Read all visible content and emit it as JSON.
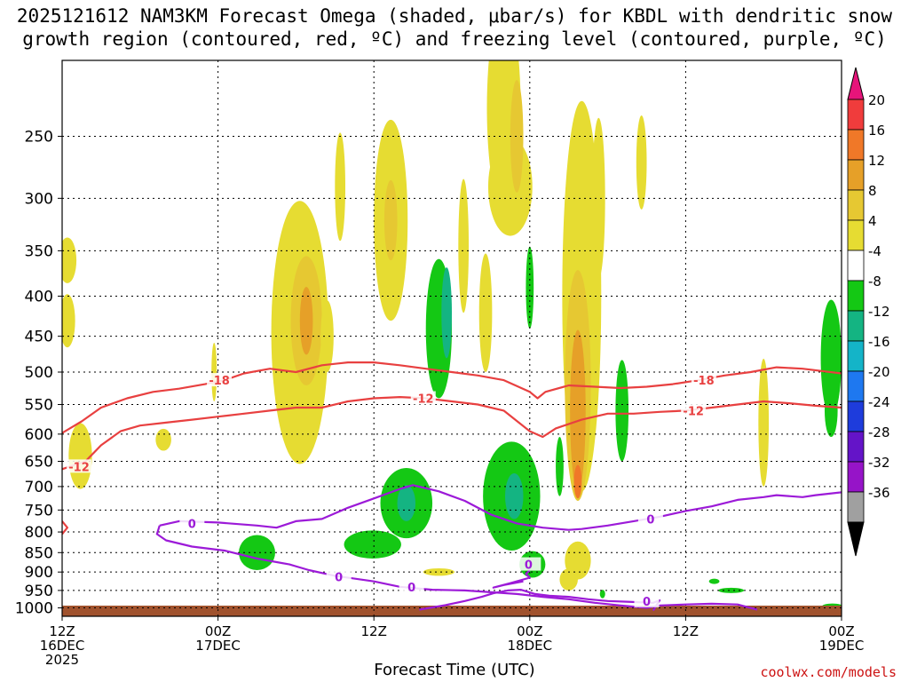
{
  "title": {
    "line1": "2025121612 NAM3KM Forecast Omega (shaded, μbar/s) for KBDL with dendritic snow",
    "line2": "growth region (contoured, red, ºC) and freezing level (contoured, purple, ºC)"
  },
  "credit": "coolwx.com/models",
  "chart_data": {
    "type": "heatmap",
    "title": "2025121612 NAM3KM Forecast Omega (shaded, μbar/s) for KBDL with dendritic snow growth region (contoured, red, ºC) and freezing level (contoured, purple, ºC)",
    "xlabel": "Forecast Time (UTC)",
    "ylabel": "",
    "x_range_hours": [
      0,
      60
    ],
    "y_scale": "log-pressure",
    "y_range_hpa": [
      1025,
      200
    ],
    "y_ticks": [
      250,
      300,
      350,
      400,
      450,
      500,
      550,
      600,
      650,
      700,
      750,
      800,
      850,
      900,
      950,
      1000
    ],
    "x_ticks": [
      {
        "hour": 0,
        "line1": "12Z",
        "line2": "16DEC",
        "line3": "2025"
      },
      {
        "hour": 12,
        "line1": "00Z",
        "line2": "17DEC",
        "line3": ""
      },
      {
        "hour": 24,
        "line1": "12Z",
        "line2": "",
        "line3": ""
      },
      {
        "hour": 36,
        "line1": "00Z",
        "line2": "18DEC",
        "line3": ""
      },
      {
        "hour": 48,
        "line1": "12Z",
        "line2": "",
        "line3": ""
      },
      {
        "hour": 60,
        "line1": "00Z",
        "line2": "19DEC",
        "line3": ""
      }
    ],
    "colorbar": {
      "levels": [
        "20",
        "16",
        "12",
        "8",
        "4",
        "-4",
        "-8",
        "-12",
        "-16",
        "-20",
        "-24",
        "-28",
        "-32",
        "-36"
      ],
      "colors": [
        "#f03c3c",
        "#f07828",
        "#e6a028",
        "#e6c832",
        "#e6dc32",
        "#ffffff",
        "#14c814",
        "#14b482",
        "#14b4c8",
        "#1e78f0",
        "#1e3cdc",
        "#6414c8",
        "#9614c8",
        "#a0a0a0"
      ],
      "over_color": "#e6147a",
      "under_color": "#000000"
    },
    "omega_blobs": [
      {
        "t": 0.4,
        "p": 360,
        "dt": 0.7,
        "dp": 25,
        "level": 4
      },
      {
        "t": 0.4,
        "p": 430,
        "dt": 0.6,
        "dp": 35,
        "level": 4
      },
      {
        "t": 1.4,
        "p": 640,
        "dt": 0.9,
        "dp": 65,
        "level": 4
      },
      {
        "t": 7.8,
        "p": 610,
        "dt": 0.6,
        "dp": 20,
        "level": 4
      },
      {
        "t": 11.7,
        "p": 500,
        "dt": 0.2,
        "dp": 45,
        "level": 4
      },
      {
        "t": 18.3,
        "p": 445,
        "dt": 2.2,
        "dp": 210,
        "level": 4
      },
      {
        "t": 18.8,
        "p": 430,
        "dt": 1.2,
        "dp": 90,
        "level": 8
      },
      {
        "t": 18.8,
        "p": 430,
        "dt": 0.5,
        "dp": 45,
        "level": 12
      },
      {
        "t": 20.4,
        "p": 450,
        "dt": 0.5,
        "dp": 50,
        "level": 4
      },
      {
        "t": 21.4,
        "p": 290,
        "dt": 0.4,
        "dp": 50,
        "level": 4
      },
      {
        "t": 25.3,
        "p": 320,
        "dt": 1.3,
        "dp": 110,
        "level": 4
      },
      {
        "t": 25.3,
        "p": 320,
        "dt": 0.5,
        "dp": 40,
        "level": 8
      },
      {
        "t": 30.9,
        "p": 345,
        "dt": 0.4,
        "dp": 75,
        "level": 4
      },
      {
        "t": 32.6,
        "p": 420,
        "dt": 0.5,
        "dp": 80,
        "level": 4
      },
      {
        "t": 34.0,
        "p": 230,
        "dt": 1.3,
        "dp": 80,
        "level": 4
      },
      {
        "t": 34.5,
        "p": 290,
        "dt": 1.7,
        "dp": 45,
        "level": 4
      },
      {
        "t": 35.0,
        "p": 250,
        "dt": 0.5,
        "dp": 45,
        "level": 8
      },
      {
        "t": 40.0,
        "p": 400,
        "dt": 1.5,
        "dp": 310,
        "level": 4
      },
      {
        "t": 39.7,
        "p": 520,
        "dt": 1.0,
        "dp": 210,
        "level": 8
      },
      {
        "t": 39.7,
        "p": 560,
        "dt": 0.6,
        "dp": 150,
        "level": 12
      },
      {
        "t": 39.7,
        "p": 690,
        "dt": 0.3,
        "dp": 35,
        "level": 16
      },
      {
        "t": 39.7,
        "p": 870,
        "dt": 1.0,
        "dp": 50,
        "level": 4
      },
      {
        "t": 41.3,
        "p": 300,
        "dt": 0.5,
        "dp": 80,
        "level": 4
      },
      {
        "t": 44.6,
        "p": 270,
        "dt": 0.4,
        "dp": 40,
        "level": 4
      },
      {
        "t": 54.0,
        "p": 580,
        "dt": 0.4,
        "dp": 120,
        "level": 4
      },
      {
        "t": 29.0,
        "p": 900,
        "dt": 1.2,
        "dp": 10,
        "level": 4
      },
      {
        "t": 39.0,
        "p": 920,
        "dt": 0.7,
        "dp": 30,
        "level": 4
      },
      {
        "t": 26.5,
        "p": 735,
        "dt": 2.0,
        "dp": 80,
        "level": -4
      },
      {
        "t": 26.5,
        "p": 735,
        "dt": 0.7,
        "dp": 40,
        "level": -8
      },
      {
        "t": 23.9,
        "p": 830,
        "dt": 2.2,
        "dp": 35,
        "level": -4
      },
      {
        "t": 29.0,
        "p": 440,
        "dt": 1.0,
        "dp": 100,
        "level": -4
      },
      {
        "t": 29.6,
        "p": 420,
        "dt": 0.4,
        "dp": 60,
        "level": -8
      },
      {
        "t": 34.6,
        "p": 720,
        "dt": 2.2,
        "dp": 125,
        "level": -4
      },
      {
        "t": 34.8,
        "p": 720,
        "dt": 0.7,
        "dp": 50,
        "level": -8
      },
      {
        "t": 36.2,
        "p": 880,
        "dt": 1.0,
        "dp": 35,
        "level": -4
      },
      {
        "t": 36.0,
        "p": 390,
        "dt": 0.3,
        "dp": 50,
        "level": -4
      },
      {
        "t": 38.3,
        "p": 660,
        "dt": 0.3,
        "dp": 60,
        "level": -4
      },
      {
        "t": 15.0,
        "p": 850,
        "dt": 1.4,
        "dp": 45,
        "level": -4
      },
      {
        "t": 43.1,
        "p": 560,
        "dt": 0.5,
        "dp": 90,
        "level": -4
      },
      {
        "t": 41.6,
        "p": 960,
        "dt": 0.2,
        "dp": 12,
        "level": -4
      },
      {
        "t": 59.2,
        "p": 480,
        "dt": 0.8,
        "dp": 90,
        "level": -4
      },
      {
        "t": 59.2,
        "p": 560,
        "dt": 0.5,
        "dp": 45,
        "level": -4
      },
      {
        "t": 59.3,
        "p": 995,
        "dt": 0.8,
        "dp": 5,
        "level": -4
      },
      {
        "t": 51.5,
        "p": 950,
        "dt": 1.0,
        "dp": 5,
        "level": -4
      },
      {
        "t": 50.2,
        "p": 925,
        "dt": 0.4,
        "dp": 5,
        "level": -4
      }
    ],
    "contours": [
      {
        "name": "-18",
        "color": "#e84040",
        "label": "-18",
        "label_points": [
          [
            12.1,
            512
          ],
          [
            49.4,
            512
          ]
        ],
        "points": [
          [
            0,
            598
          ],
          [
            1.5,
            578
          ],
          [
            3.0,
            555
          ],
          [
            5.0,
            540
          ],
          [
            7.0,
            530
          ],
          [
            9.0,
            525
          ],
          [
            11.0,
            518
          ],
          [
            12.5,
            512
          ],
          [
            14.0,
            502
          ],
          [
            16.0,
            495
          ],
          [
            18.0,
            500
          ],
          [
            20.0,
            490
          ],
          [
            22.0,
            486
          ],
          [
            24.0,
            486
          ],
          [
            26.0,
            490
          ],
          [
            28.0,
            495
          ],
          [
            30.0,
            500
          ],
          [
            32.0,
            505
          ],
          [
            34.0,
            512
          ],
          [
            36.0,
            530
          ],
          [
            36.6,
            540
          ],
          [
            37.2,
            530
          ],
          [
            39.0,
            520
          ],
          [
            41.0,
            522
          ],
          [
            43.0,
            524
          ],
          [
            45.0,
            522
          ],
          [
            47.0,
            518
          ],
          [
            49.0,
            512
          ],
          [
            51.0,
            505
          ],
          [
            53.0,
            500
          ],
          [
            55.0,
            493
          ],
          [
            57.0,
            495
          ],
          [
            60.0,
            502
          ]
        ]
      },
      {
        "name": "-12",
        "color": "#e84040",
        "label": "-12",
        "label_points": [
          [
            1.3,
            660
          ],
          [
            27.8,
            540
          ],
          [
            48.6,
            560
          ]
        ],
        "points": [
          [
            0,
            665
          ],
          [
            1.8,
            650
          ],
          [
            3.0,
            620
          ],
          [
            4.5,
            595
          ],
          [
            6.0,
            585
          ],
          [
            8.0,
            580
          ],
          [
            10.0,
            575
          ],
          [
            12.0,
            570
          ],
          [
            14.0,
            565
          ],
          [
            16.0,
            560
          ],
          [
            18.0,
            555
          ],
          [
            20.0,
            555
          ],
          [
            22.0,
            545
          ],
          [
            24.0,
            540
          ],
          [
            26.0,
            538
          ],
          [
            28.0,
            540
          ],
          [
            30.0,
            545
          ],
          [
            32.0,
            550
          ],
          [
            34.0,
            560
          ],
          [
            36.0,
            595
          ],
          [
            37.0,
            605
          ],
          [
            38.0,
            590
          ],
          [
            40.0,
            575
          ],
          [
            42.0,
            565
          ],
          [
            44.0,
            565
          ],
          [
            46.0,
            562
          ],
          [
            48.0,
            560
          ],
          [
            50.0,
            555
          ],
          [
            52.0,
            550
          ],
          [
            54.0,
            545
          ],
          [
            56.0,
            548
          ],
          [
            58.0,
            552
          ],
          [
            60.0,
            555
          ]
        ]
      },
      {
        "name": "0",
        "color": "#9c1ad8",
        "label": "0",
        "label_points": [
          [
            10.0,
            780
          ],
          [
            45.3,
            770
          ],
          [
            26.9,
            940
          ],
          [
            45.0,
            980
          ],
          [
            35.9,
            880
          ],
          [
            21.3,
            912
          ]
        ],
        "points": [
          [
            7.5,
            785
          ],
          [
            9.0,
            775
          ],
          [
            12.0,
            778
          ],
          [
            15.0,
            785
          ],
          [
            16.5,
            790
          ],
          [
            18.0,
            775
          ],
          [
            20.0,
            770
          ],
          [
            22.0,
            745
          ],
          [
            24.0,
            725
          ],
          [
            26.0,
            705
          ],
          [
            27.0,
            697
          ],
          [
            29.0,
            710
          ],
          [
            31.0,
            730
          ],
          [
            33.0,
            760
          ],
          [
            35.0,
            780
          ],
          [
            37.0,
            790
          ],
          [
            39.0,
            795
          ],
          [
            40.0,
            793
          ],
          [
            42.0,
            785
          ],
          [
            44.0,
            775
          ],
          [
            46.0,
            765
          ],
          [
            48.0,
            752
          ],
          [
            50.0,
            742
          ],
          [
            52.0,
            728
          ],
          [
            54.0,
            722
          ],
          [
            55.0,
            718
          ],
          [
            57.0,
            722
          ],
          [
            58.0,
            718
          ],
          [
            60.0,
            712
          ]
        ]
      },
      {
        "name": "0b",
        "color": "#9c1ad8",
        "label": "",
        "label_points": [],
        "points": [
          [
            7.5,
            785
          ],
          [
            7.3,
            805
          ],
          [
            8.0,
            820
          ],
          [
            10.0,
            835
          ],
          [
            12.5,
            845
          ],
          [
            15.0,
            865
          ],
          [
            17.5,
            880
          ],
          [
            19.0,
            895
          ],
          [
            21.0,
            910
          ],
          [
            24.0,
            925
          ],
          [
            26.0,
            940
          ],
          [
            28.5,
            948
          ],
          [
            31.0,
            950
          ],
          [
            33.0,
            955
          ],
          [
            35.0,
            960
          ],
          [
            37.0,
            968
          ],
          [
            39.0,
            975
          ],
          [
            41.0,
            985
          ],
          [
            43.0,
            993
          ],
          [
            45.0,
            1000
          ],
          [
            46.0,
            993
          ],
          [
            48.0,
            990
          ],
          [
            50.0,
            988
          ],
          [
            52.0,
            990
          ],
          [
            53.5,
            1005
          ]
        ]
      },
      {
        "name": "0c",
        "color": "#9c1ad8",
        "label": "",
        "label_points": [],
        "points": [
          [
            27.5,
            1005
          ],
          [
            29.5,
            992
          ],
          [
            31.0,
            980
          ],
          [
            32.3,
            968
          ],
          [
            33.2,
            958
          ],
          [
            34.3,
            950
          ],
          [
            35.3,
            948
          ],
          [
            36.4,
            960
          ],
          [
            37.5,
            965
          ],
          [
            39.0,
            968
          ],
          [
            40.5,
            975
          ],
          [
            42.0,
            980
          ],
          [
            43.5,
            982
          ],
          [
            45.5,
            985
          ],
          [
            46.0,
            978
          ],
          [
            45.5,
            1008
          ]
        ]
      },
      {
        "name": "0d",
        "color": "#9c1ad8",
        "label": "",
        "label_points": [],
        "points": [
          [
            35.5,
            925
          ],
          [
            34.0,
            935
          ],
          [
            33.2,
            942
          ],
          [
            34.5,
            930
          ],
          [
            36.0,
            915
          ],
          [
            35.7,
            905
          ],
          [
            36.0,
            895
          ]
        ]
      },
      {
        "name": "red-edge",
        "color": "#e84040",
        "label": "",
        "label_points": [],
        "points": [
          [
            0,
            775
          ],
          [
            0.4,
            790
          ],
          [
            0,
            805
          ]
        ]
      }
    ]
  }
}
